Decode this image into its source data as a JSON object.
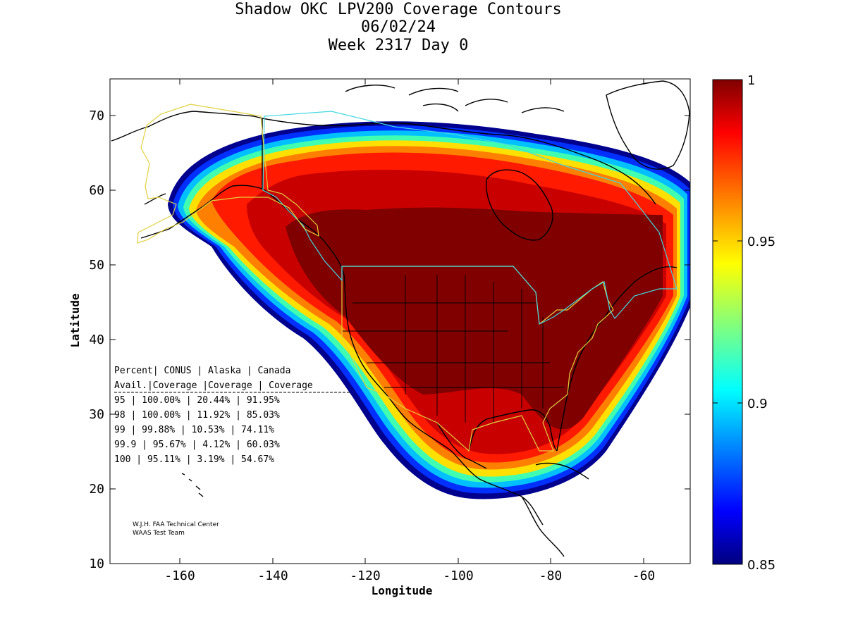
{
  "title": {
    "line1": "Shadow OKC LPV200 Coverage Contours",
    "line2": "06/02/24",
    "line3": "Week 2317 Day 0"
  },
  "axes": {
    "xlabel": "Longitude",
    "ylabel": "Latitude",
    "x_ticks": [
      "-160",
      "-140",
      "-120",
      "-100",
      "-80",
      "-60"
    ],
    "y_ticks": [
      "10",
      "20",
      "30",
      "40",
      "50",
      "60",
      "70"
    ],
    "xlim": [
      -175,
      -50
    ],
    "ylim": [
      10,
      75
    ]
  },
  "colorbar": {
    "tick_labels": [
      "1",
      "0.95",
      "0.9",
      "0.85"
    ],
    "range": [
      0.85,
      1.0
    ],
    "colormap": "jet"
  },
  "table": {
    "header1": "Percent| CONUS   | Alaska  | Canada",
    "header2": " Avail.|Coverage |Coverage | Coverage",
    "rows": [
      "  95   | 100.00%  | 20.44% | 91.95%",
      "  98   | 100.00%  | 11.92% | 85.03%",
      "  99   | 99.88%  | 10.53% | 74.11%",
      "99.9   | 95.67%  | 4.12% | 60.03%",
      " 100   | 95.11%  | 3.19% | 54.67%"
    ]
  },
  "credit": {
    "line1": "W.J.H. FAA Technical Center",
    "line2": "WAAS Test Team"
  },
  "chart_data": {
    "type": "heatmap",
    "title": "Shadow OKC LPV200 Coverage Contours",
    "subtitle": [
      "06/02/24",
      "Week 2317 Day 0"
    ],
    "xlabel": "Longitude",
    "ylabel": "Latitude",
    "xlim": [
      -175,
      -50
    ],
    "ylim": [
      10,
      75
    ],
    "colorbar_range": [
      0.85,
      1.0
    ],
    "grid": false,
    "coverage_table": {
      "columns": [
        "Percent Avail.",
        "CONUS Coverage",
        "Alaska Coverage",
        "Canada Coverage"
      ],
      "rows": [
        [
          "95",
          "100.00%",
          "20.44%",
          "91.95%"
        ],
        [
          "98",
          "100.00%",
          "11.92%",
          "85.03%"
        ],
        [
          "99",
          "99.88%",
          "10.53%",
          "74.11%"
        ],
        [
          "99.9",
          "95.67%",
          "4.12%",
          "60.03%"
        ],
        [
          "100",
          "95.11%",
          "3.19%",
          "54.67%"
        ]
      ]
    }
  },
  "colors": {
    "conus_boundary": "#e0d040",
    "canada_boundary": "#40d8e0",
    "coastline": "#000000"
  }
}
